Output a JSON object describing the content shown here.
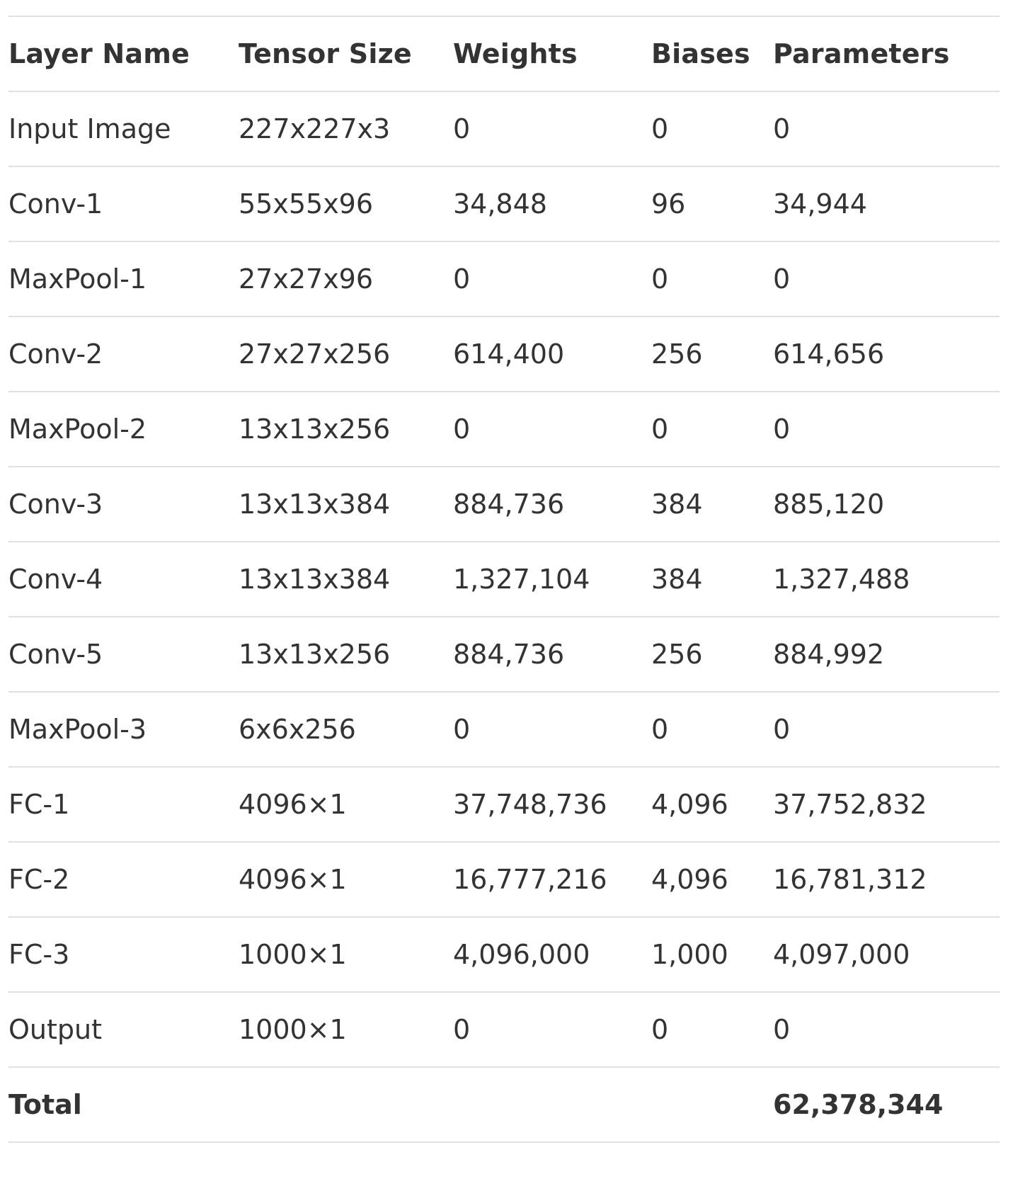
{
  "table": {
    "headers": [
      "Layer Name",
      "Tensor Size",
      "Weights",
      "Biases",
      "Parameters"
    ],
    "rows": [
      [
        "Input Image",
        "227x227x3",
        "0",
        "0",
        "0"
      ],
      [
        "Conv-1",
        "55x55x96",
        "34,848",
        "96",
        "34,944"
      ],
      [
        "MaxPool-1",
        "27x27x96",
        "0",
        "0",
        "0"
      ],
      [
        "Conv-2",
        "27x27x256",
        "614,400",
        "256",
        "614,656"
      ],
      [
        "MaxPool-2",
        "13x13x256",
        "0",
        "0",
        "0"
      ],
      [
        "Conv-3",
        "13x13x384",
        "884,736",
        "384",
        "885,120"
      ],
      [
        "Conv-4",
        "13x13x384",
        "1,327,104",
        "384",
        "1,327,488"
      ],
      [
        "Conv-5",
        "13x13x256",
        "884,736",
        "256",
        "884,992"
      ],
      [
        "MaxPool-3",
        "6x6x256",
        "0",
        "0",
        "0"
      ],
      [
        "FC-1",
        "4096×1",
        "37,748,736",
        "4,096",
        "37,752,832"
      ],
      [
        "FC-2",
        "4096×1",
        "16,777,216",
        "4,096",
        "16,781,312"
      ],
      [
        "FC-3",
        "1000×1",
        "4,096,000",
        "1,000",
        "4,097,000"
      ],
      [
        "Output",
        "1000×1",
        "0",
        "0",
        "0"
      ]
    ],
    "total": {
      "label": "Total",
      "tensor_size": "",
      "weights": "",
      "biases": "",
      "parameters": "62,378,344"
    }
  }
}
